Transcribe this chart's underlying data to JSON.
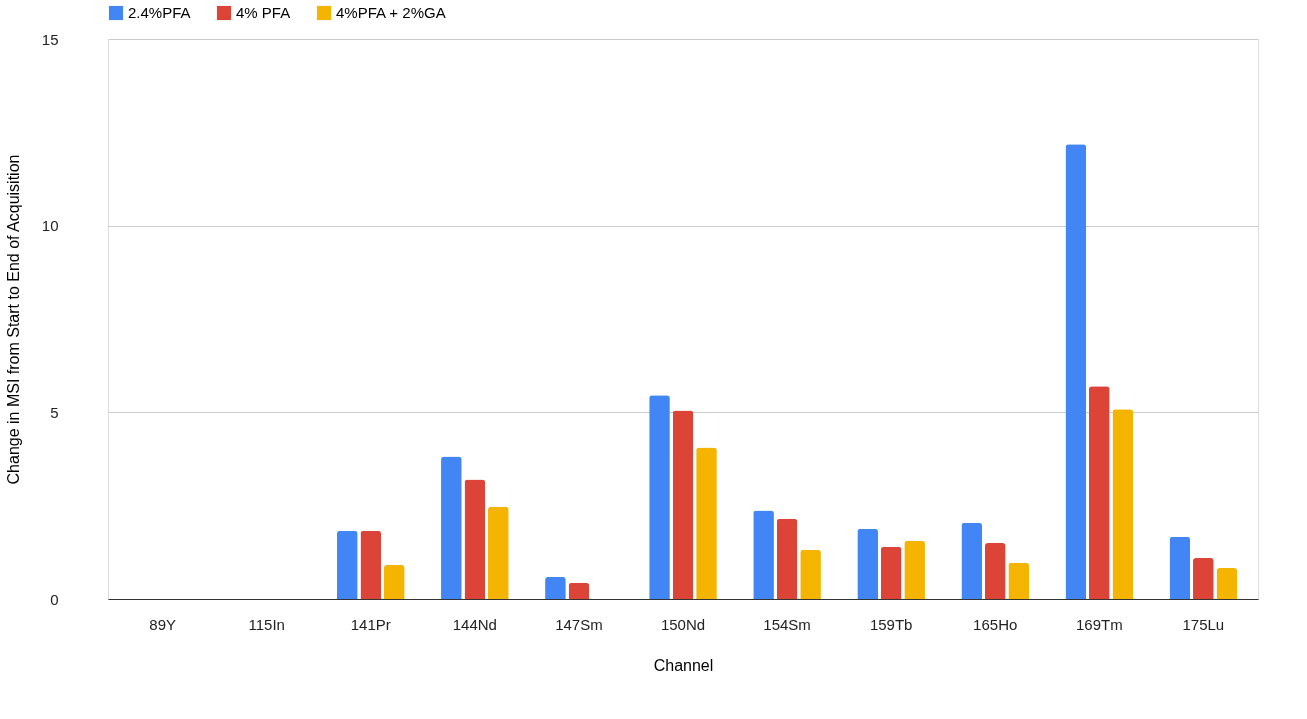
{
  "chart_data": {
    "type": "bar",
    "xlabel": "Channel",
    "ylabel": "Change in MSI from Start to End of Acquisition",
    "categories": [
      "89Y",
      "115In",
      "141Pr",
      "144Nd",
      "147Sm",
      "150Nd",
      "154Sm",
      "159Tb",
      "165Ho",
      "169Tm",
      "175Lu"
    ],
    "series": [
      {
        "name": "2.4%PFA",
        "color": "#4285f4",
        "values": [
          0,
          0,
          1.83,
          3.82,
          0.59,
          5.46,
          2.37,
          1.88,
          2.04,
          12.18,
          1.67
        ]
      },
      {
        "name": "4% PFA",
        "color": "#db4437",
        "values": [
          0,
          0,
          1.83,
          3.2,
          0.43,
          5.05,
          2.15,
          1.4,
          1.5,
          5.7,
          1.1
        ]
      },
      {
        "name": "4%PFA + 2%GA",
        "color": "#f4b400",
        "values": [
          0,
          0,
          0.91,
          2.47,
          0,
          4.06,
          1.32,
          1.56,
          0.97,
          5.08,
          0.83
        ]
      }
    ],
    "ylim": [
      0,
      15
    ],
    "yticks": [
      0,
      5,
      10,
      15
    ],
    "grid": "y",
    "legend": "top"
  }
}
